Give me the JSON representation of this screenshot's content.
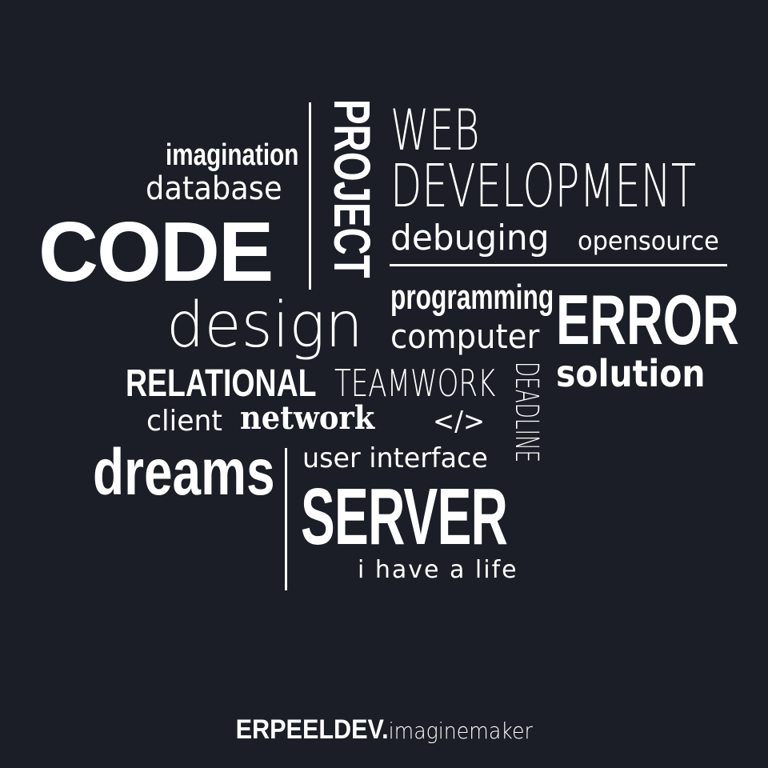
{
  "words": {
    "imagination": "imagination",
    "database": "database",
    "code": "CODE",
    "project": "PROJECT",
    "web": "WEB",
    "web_development": "DEVELOPMENT",
    "debuging": "debuging",
    "opensource": "opensource",
    "programming": "programming",
    "computer": "computer",
    "error": "ERROR",
    "solution": "solution",
    "design": "design",
    "relational": "RELATIONAL",
    "teamwork": "TEAMWORK",
    "deadline": "DEADLINE",
    "client": "client",
    "network": "network",
    "code_tag": "</>",
    "dreams": "dreams",
    "user_interface": "user interface",
    "server": "SERVER",
    "i_have_a_life": "i have a life"
  },
  "footer": {
    "brand": "ERPEELDEV.",
    "tagline": "imaginemaker"
  },
  "colors": {
    "background": "#1b1e26",
    "text": "#ffffff"
  }
}
